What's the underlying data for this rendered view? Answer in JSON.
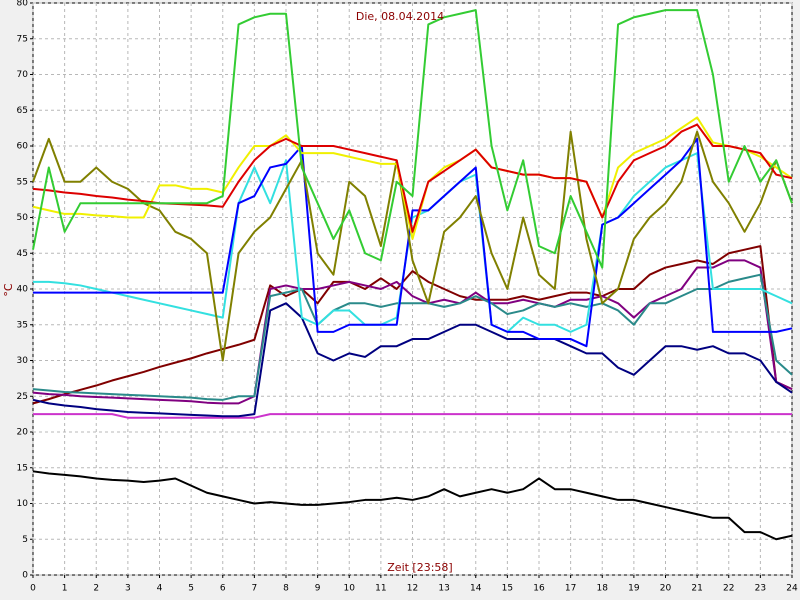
{
  "chart_data": {
    "type": "line",
    "title": "Die, 08.04.2014",
    "x_label": "Zeit [23:58]",
    "y_label": "°C",
    "x": [
      0,
      0.5,
      1,
      1.5,
      2,
      2.5,
      3,
      3.5,
      4,
      4.5,
      5,
      5.5,
      6,
      6.5,
      7,
      7.5,
      8,
      8.5,
      9,
      9.5,
      10,
      10.5,
      11,
      11.5,
      12,
      12.5,
      13,
      13.5,
      14,
      14.5,
      15,
      15.5,
      16,
      16.5,
      17,
      17.5,
      18,
      18.5,
      19,
      19.5,
      20,
      20.5,
      21,
      21.5,
      22,
      22.5,
      23,
      23.5,
      24
    ],
    "xlim": [
      0,
      24
    ],
    "xticks": [
      0,
      1,
      2,
      3,
      4,
      5,
      6,
      7,
      8,
      9,
      10,
      11,
      12,
      13,
      14,
      15,
      16,
      17,
      18,
      19,
      20,
      21,
      22,
      23,
      24
    ],
    "ylim": [
      0,
      80
    ],
    "yticks": [
      0,
      5,
      10,
      15,
      20,
      25,
      30,
      35,
      40,
      45,
      50,
      55,
      60,
      65,
      70,
      75,
      80
    ],
    "grid": true,
    "series": [
      {
        "color": "#000000",
        "values": [
          14.5,
          14.2,
          14,
          13.8,
          13.5,
          13.3,
          13.2,
          13,
          13.2,
          13.5,
          12.5,
          11.5,
          11,
          10.5,
          10,
          10.2,
          10,
          9.8,
          9.8,
          10,
          10.2,
          10.5,
          10.5,
          10.8,
          10.5,
          11,
          12,
          11,
          11.5,
          12,
          11.5,
          12,
          13.5,
          12,
          12,
          11.5,
          11,
          10.5,
          10.5,
          10,
          9.5,
          9,
          8.5,
          8,
          8,
          6,
          6,
          5,
          5.5
        ]
      },
      {
        "color": "#cc33cc",
        "values": [
          22.5,
          22.5,
          22.5,
          22.5,
          22.5,
          22.5,
          22,
          22,
          22,
          22,
          22,
          22,
          22,
          22,
          22,
          22.5,
          22.5,
          22.5,
          22.5,
          22.5,
          22.5,
          22.5,
          22.5,
          22.5,
          22.5,
          22.5,
          22.5,
          22.5,
          22.5,
          22.5,
          22.5,
          22.5,
          22.5,
          22.5,
          22.5,
          22.5,
          22.5,
          22.5,
          22.5,
          22.5,
          22.5,
          22.5,
          22.5,
          22.5,
          22.5,
          22.5,
          22.5,
          22.5,
          22.5
        ]
      },
      {
        "color": "#800000",
        "values": [
          24,
          24.6,
          25.3,
          25.9,
          26.5,
          27.2,
          27.8,
          28.4,
          29.1,
          29.7,
          30.3,
          31,
          31.6,
          32.2,
          32.9,
          40.5,
          39,
          40,
          38,
          41,
          41,
          40,
          41.5,
          40,
          42.5,
          41,
          40,
          39,
          38.5,
          38.5,
          38.5,
          39,
          38.5,
          39,
          39.5,
          39.5,
          39,
          40,
          40,
          42,
          43,
          43.5,
          44,
          43.5,
          45,
          45.5,
          46,
          27,
          26
        ]
      },
      {
        "color": "#800080",
        "values": [
          25.5,
          25.3,
          25.2,
          25,
          24.9,
          24.8,
          24.7,
          24.6,
          24.5,
          24.4,
          24.3,
          24.1,
          24,
          24,
          25,
          40,
          40.5,
          40,
          40,
          40.5,
          41,
          40.5,
          40,
          41,
          39,
          38,
          38.5,
          38,
          39.5,
          38,
          38,
          38.5,
          38,
          37.5,
          38.5,
          38.5,
          39,
          38,
          36,
          38,
          39,
          40,
          43,
          43,
          44,
          44,
          43,
          27,
          26
        ]
      },
      {
        "color": "#2a8a8a",
        "values": [
          26,
          25.8,
          25.6,
          25.5,
          25.4,
          25.3,
          25.2,
          25.1,
          25,
          24.9,
          24.8,
          24.6,
          24.5,
          25,
          25,
          39,
          39.5,
          40,
          35,
          37,
          38,
          38,
          37.5,
          38,
          38,
          38,
          37.5,
          38,
          39,
          38,
          36.5,
          37,
          38,
          37.5,
          38,
          37.5,
          38,
          37,
          35,
          38,
          38,
          39,
          40,
          40,
          41,
          41.5,
          42,
          30,
          28
        ]
      },
      {
        "color": "#000080",
        "values": [
          24.5,
          24,
          23.7,
          23.5,
          23.2,
          23,
          22.8,
          22.7,
          22.6,
          22.5,
          22.4,
          22.3,
          22.2,
          22.2,
          22.5,
          37,
          38,
          36,
          31,
          30,
          31,
          30.5,
          32,
          32,
          33,
          33,
          34,
          35,
          35,
          34,
          33,
          33,
          33,
          33,
          32,
          31,
          31,
          29,
          28,
          30,
          32,
          32,
          31.5,
          32,
          31,
          31,
          30,
          27,
          25.5
        ]
      },
      {
        "color": "#33e0e0",
        "values": [
          41,
          41,
          40.8,
          40.5,
          40,
          39.5,
          39,
          38.5,
          38,
          37.5,
          37,
          36.5,
          36,
          52,
          57,
          52,
          58,
          36,
          35,
          37,
          37,
          35,
          35,
          36,
          50,
          51,
          53,
          55,
          56,
          35,
          34,
          36,
          35,
          35,
          34,
          35,
          49,
          50,
          53,
          55,
          57,
          58,
          59,
          40,
          40,
          40,
          40,
          39,
          38
        ]
      },
      {
        "color": "#0000ff",
        "values": [
          39.5,
          39.5,
          39.5,
          39.5,
          39.5,
          39.5,
          39.5,
          39.5,
          39.5,
          39.5,
          39.5,
          39.5,
          39.5,
          52,
          53,
          57,
          57.5,
          60,
          34,
          34,
          35,
          35,
          35,
          35,
          51,
          51,
          53,
          55,
          57,
          35,
          34,
          34,
          33,
          33,
          33,
          32,
          49,
          50,
          52,
          54,
          56,
          58,
          61,
          34,
          34,
          34,
          34,
          34,
          34.5
        ]
      },
      {
        "color": "#808000",
        "values": [
          55,
          61,
          55,
          55,
          57,
          55,
          54,
          52,
          51,
          48,
          47,
          45,
          30,
          45,
          48,
          50,
          54,
          58,
          45,
          42,
          55,
          53,
          46,
          58,
          44,
          38,
          48,
          50,
          53,
          45,
          40,
          50,
          42,
          40,
          62,
          47,
          38,
          40,
          47,
          50,
          52,
          55,
          62,
          55,
          52,
          48,
          52,
          58,
          52
        ]
      },
      {
        "color": "#f0f000",
        "values": [
          51.5,
          51,
          50.5,
          50.5,
          50.3,
          50.2,
          50,
          50,
          54.5,
          54.5,
          54,
          54,
          53.5,
          57,
          60,
          60,
          61.5,
          59,
          59,
          59,
          58.5,
          58,
          57.5,
          57.5,
          47,
          55,
          57,
          58,
          59.5,
          57,
          56.5,
          56,
          56,
          55.5,
          55.5,
          55,
          50,
          57,
          59,
          60,
          61,
          62.5,
          64,
          60.5,
          60,
          59.5,
          58.5,
          57,
          55.5
        ]
      },
      {
        "color": "#dd0000",
        "values": [
          54,
          53.8,
          53.5,
          53.3,
          53,
          52.8,
          52.5,
          52.3,
          52,
          51.9,
          51.8,
          51.7,
          51.5,
          55,
          58,
          60,
          61,
          60,
          60,
          60,
          59.5,
          59,
          58.5,
          58,
          48,
          55,
          56.5,
          58,
          59.5,
          57,
          56.5,
          56,
          56,
          55.5,
          55.5,
          55,
          50,
          55,
          58,
          59,
          60,
          62,
          63,
          60,
          60,
          59.5,
          59,
          56,
          55.5
        ]
      },
      {
        "color": "#33cc33",
        "values": [
          45.5,
          57,
          48,
          52,
          52,
          52,
          52,
          52,
          52,
          52,
          52,
          52,
          53,
          77,
          78,
          78.5,
          78.5,
          57,
          52,
          47,
          51,
          45,
          44,
          55,
          53,
          77,
          78,
          78.5,
          79,
          60,
          51,
          58,
          46,
          45,
          53,
          48,
          43,
          77,
          78,
          78.5,
          79,
          79,
          79,
          70,
          55,
          60,
          55,
          58,
          52
        ]
      }
    ]
  }
}
